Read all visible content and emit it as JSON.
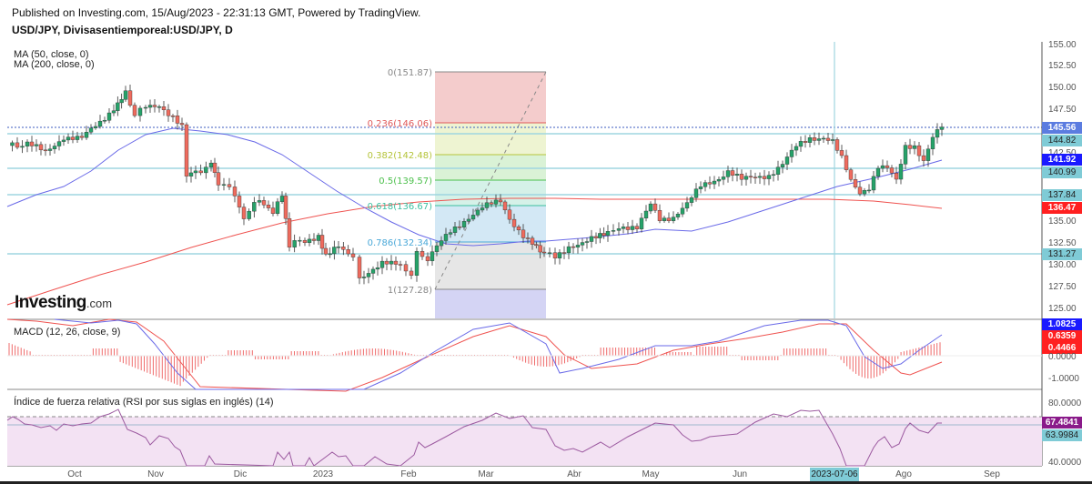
{
  "header": {
    "published": "Published on Investing.com, 15/Aug/2023 - 22:31:13 GMT, Powered by TradingView.",
    "symbol": "USD/JPY, Divisasentiemporeal:USD/JPY, D"
  },
  "legend": {
    "ma50": "MA (50, close, 0)",
    "ma200": "MA (200, close, 0)"
  },
  "logo": {
    "main": "Investing",
    "suffix": ".com"
  },
  "panes": {
    "macd_label": "MACD (12, 26, close, 9)",
    "rsi_label": "Índice de fuerza relativa (RSI por sus siglas en inglés) (14)"
  },
  "price_axis": {
    "ticks": [
      "155.00",
      "152.50",
      "150.00",
      "147.50",
      "145.00",
      "142.50",
      "140.00",
      "137.50",
      "135.00",
      "132.50",
      "130.00",
      "127.50",
      "125.00"
    ],
    "tags": [
      {
        "value": "145.56",
        "bg": "#5b7ce0",
        "fg": "#ffffff"
      },
      {
        "value": "144.82",
        "bg": "#7fcbd6",
        "fg": "#222222"
      },
      {
        "value": "141.92",
        "bg": "#1a1aff",
        "fg": "#ffffff"
      },
      {
        "value": "140.99",
        "bg": "#7fcbd6",
        "fg": "#222222"
      },
      {
        "value": "137.84",
        "bg": "#7fcbd6",
        "fg": "#222222"
      },
      {
        "value": "136.47",
        "bg": "#ff2020",
        "fg": "#ffffff"
      },
      {
        "value": "131.27",
        "bg": "#7fcbd6",
        "fg": "#222222"
      }
    ]
  },
  "macd_axis": {
    "ticks": [
      "0.0000",
      "-1.0000"
    ],
    "tags": [
      {
        "value": "1.0825",
        "bg": "#1a1aff",
        "fg": "#ffffff"
      },
      {
        "value": "0.6359",
        "bg": "#ff2020",
        "fg": "#ffffff"
      },
      {
        "value": "0.4466",
        "bg": "#ff2020",
        "fg": "#ffffff"
      }
    ]
  },
  "rsi_axis": {
    "ticks": [
      "80.0000",
      "40.0000"
    ],
    "tags": [
      {
        "value": "67.4841",
        "bg": "#8a1a8a",
        "fg": "#ffffff"
      },
      {
        "value": "63.9984",
        "bg": "#7fcbd6",
        "fg": "#222222"
      }
    ]
  },
  "time_axis": {
    "labels": [
      "Oct",
      "Nov",
      "Dic",
      "2023",
      "Feb",
      "Mar",
      "Abr",
      "May",
      "Jun",
      "Ago",
      "Sep"
    ],
    "crosshair_date": "2023-07-06"
  },
  "fibonacci": [
    {
      "label": "0(151.87)",
      "color": "#888888"
    },
    {
      "label": "0.236(146.06)",
      "color": "#e05a5a"
    },
    {
      "label": "0.382(142.48)",
      "color": "#b5c43a"
    },
    {
      "label": "0.5(139.57)",
      "color": "#4cc04c"
    },
    {
      "label": "0.618(136.67)",
      "color": "#3cbfa0"
    },
    {
      "label": "0.786(132.34)",
      "color": "#4aa8d8"
    },
    {
      "label": "1(127.28)",
      "color": "#888888"
    }
  ],
  "colors": {
    "bull": "#26a269",
    "bear": "#ef6b5e",
    "ma50": "#6a6ae8",
    "ma200": "#ef5350",
    "hline": "#9fd6e0",
    "rsi": "#9c5aa0",
    "rsi_bg": "#f3e2f3"
  },
  "chart_data": {
    "type": "candlestick",
    "title": "USD/JPY, Divisasentiemporeal:USD/JPY, D",
    "xlabel": "",
    "ylabel": "",
    "ylim": [
      124,
      155
    ],
    "x_ticks": [
      "Oct",
      "Nov",
      "Dic",
      "2023",
      "Feb",
      "Mar",
      "Abr",
      "May",
      "Jun",
      "Jul",
      "Ago",
      "Sep"
    ],
    "close_series_approx": {
      "x": [
        "2022-09-15",
        "2022-10-01",
        "2022-10-21",
        "2022-11-10",
        "2022-12-01",
        "2022-12-20",
        "2023-01-16",
        "2023-02-01",
        "2023-03-08",
        "2023-03-24",
        "2023-05-01",
        "2023-06-01",
        "2023-06-30",
        "2023-07-13",
        "2023-08-15"
      ],
      "values": [
        144.5,
        144.8,
        150.5,
        139.0,
        137.0,
        132.0,
        128.0,
        130.5,
        137.8,
        130.5,
        137.0,
        139.5,
        144.8,
        138.0,
        145.56
      ]
    },
    "series": [
      {
        "name": "MA (50, close, 0)",
        "last": 141.92
      },
      {
        "name": "MA (200, close, 0)",
        "last": 136.47
      }
    ],
    "horizontal_lines": [
      144.82,
      140.99,
      137.84,
      131.27
    ],
    "last_price": 145.56,
    "fibonacci_retracement": [
      {
        "level": 0,
        "price": 151.87
      },
      {
        "level": 0.236,
        "price": 146.06
      },
      {
        "level": 0.382,
        "price": 142.48
      },
      {
        "level": 0.5,
        "price": 139.57
      },
      {
        "level": 0.618,
        "price": 136.67
      },
      {
        "level": 0.786,
        "price": 132.34
      },
      {
        "level": 1,
        "price": 127.28
      }
    ],
    "indicators": {
      "macd": {
        "params": "12, 26, close, 9",
        "macd": 1.0825,
        "signal": 0.6359,
        "histogram": 0.4466
      },
      "rsi": {
        "period": 14,
        "value": 67.4841,
        "ma": 63.9984
      }
    },
    "grid": false,
    "legend_position": "top-left"
  }
}
